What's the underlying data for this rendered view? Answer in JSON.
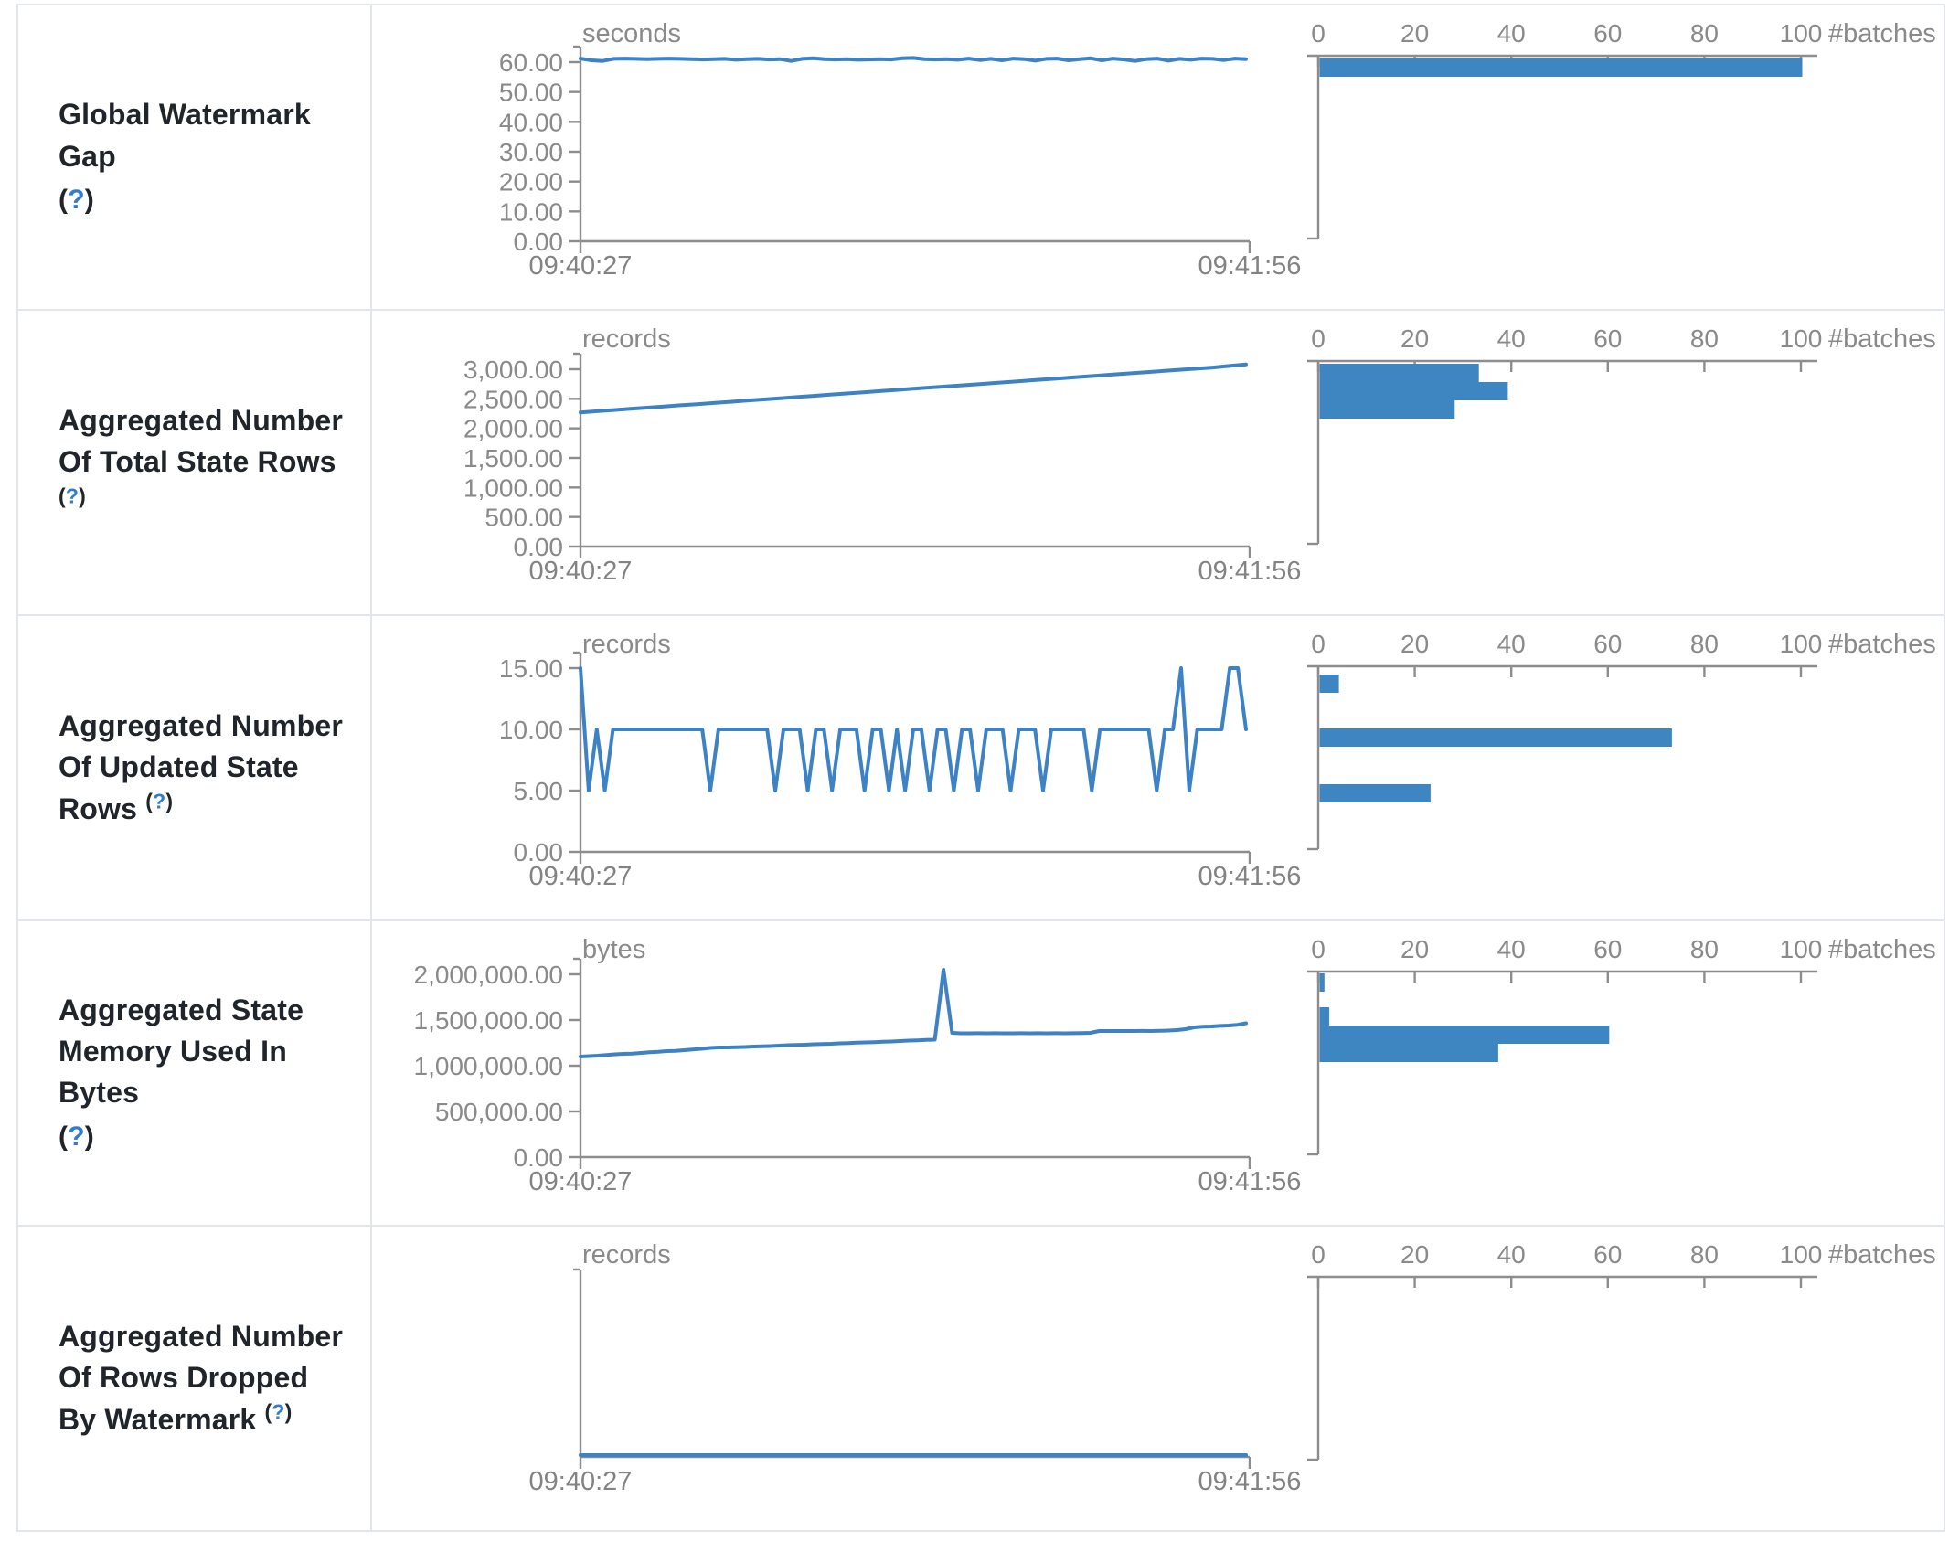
{
  "colors": {
    "series_blue": "#3c82c4",
    "histogram_blue": "#3e86c2",
    "axis_gray": "#8d8d8d",
    "tick_text_gray": "#8a8a8a",
    "label_dark": "#20252b",
    "help_blue": "#2e7dd1",
    "table_border": "#e2e5e9"
  },
  "time_axis": {
    "start": "09:40:27",
    "end": "09:41:56"
  },
  "batches_axis": {
    "ticks": [
      "0",
      "20",
      "40",
      "60",
      "80",
      "100"
    ],
    "label": "#batches"
  },
  "rows": [
    {
      "label": "Global Watermark Gap",
      "help": {
        "open": "(",
        "q": "?",
        "close": ")"
      },
      "help_style": "blk"
    },
    {
      "label": "Aggregated Number Of Total State Rows",
      "help": {
        "open": "(",
        "q": "?",
        "close": ")"
      },
      "help_style": "sup"
    },
    {
      "label": "Aggregated Number Of Updated State Rows",
      "help": {
        "open": "(",
        "q": "?",
        "close": ")"
      },
      "help_style": "sup"
    },
    {
      "label": "Aggregated State Memory Used In Bytes",
      "help": {
        "open": "(",
        "q": "?",
        "close": ")"
      },
      "help_style": "blk"
    },
    {
      "label": "Aggregated Number Of Rows Dropped By Watermark",
      "help": {
        "open": "(",
        "q": "?",
        "close": ")"
      },
      "help_style": "sup"
    }
  ],
  "chart_data": [
    {
      "type": "line",
      "metric": "Global Watermark Gap",
      "unit": "seconds",
      "x_start": "09:40:27",
      "x_end": "09:41:56",
      "yticks": [
        "60.00",
        "50.00",
        "40.00",
        "30.00",
        "20.00",
        "10.00",
        "0.00"
      ],
      "ymax_tick": 60,
      "values": [
        61.2,
        60.6,
        60.4,
        61.1,
        61.2,
        61.1,
        61.0,
        61.1,
        61.2,
        61.1,
        61.0,
        60.9,
        61.0,
        61.1,
        60.8,
        61.0,
        61.1,
        60.9,
        61.0,
        60.4,
        61.1,
        61.3,
        61.0,
        60.9,
        61.0,
        60.8,
        60.9,
        61.0,
        60.9,
        61.3,
        61.4,
        61.0,
        60.9,
        61.0,
        60.8,
        61.2,
        60.7,
        61.1,
        60.6,
        61.2,
        61.0,
        60.5,
        61.1,
        61.2,
        60.6,
        61.0,
        61.3,
        60.6,
        61.2,
        60.9,
        60.4,
        61.0,
        61.2,
        60.5,
        61.1,
        60.8,
        61.2,
        61.1,
        60.7,
        61.2,
        61.0
      ],
      "histogram_bars": [
        {
          "count": 100,
          "offset": 2
        }
      ]
    },
    {
      "type": "line",
      "metric": "Aggregated Number Of Total State Rows",
      "unit": "records",
      "x_start": "09:40:27",
      "x_end": "09:41:56",
      "yticks": [
        "3,000.00",
        "2,500.00",
        "2,000.00",
        "1,500.00",
        "1,000.00",
        "500.00",
        "0.00"
      ],
      "ymax_tick": 3000,
      "values": [
        2270,
        2290,
        2310,
        2330,
        2350,
        2370,
        2390,
        2410,
        2430,
        2450,
        2470,
        2490,
        2510,
        2530,
        2550,
        2570,
        2590,
        2610,
        2630,
        2650,
        2670,
        2690,
        2710,
        2730,
        2750,
        2770,
        2790,
        2810,
        2830,
        2850,
        2870,
        2890,
        2910,
        2930,
        2950,
        2970,
        2990,
        3010,
        3030,
        3055,
        3080
      ],
      "histogram_bars": [
        {
          "count": 33,
          "offset": 2
        },
        {
          "count": 39,
          "offset": 22
        },
        {
          "count": 28,
          "offset": 42
        }
      ]
    },
    {
      "type": "line",
      "metric": "Aggregated Number Of Updated State Rows",
      "unit": "records",
      "x_start": "09:40:27",
      "x_end": "09:41:56",
      "yticks": [
        "15.00",
        "10.00",
        "5.00",
        "0.00"
      ],
      "ymax_tick": 15,
      "values": [
        15,
        5,
        10,
        5,
        10,
        10,
        10,
        10,
        10,
        10,
        10,
        10,
        10,
        10,
        10,
        10,
        5,
        10,
        10,
        10,
        10,
        10,
        10,
        10,
        5,
        10,
        10,
        10,
        5,
        10,
        10,
        5,
        10,
        10,
        10,
        5,
        10,
        10,
        5,
        10,
        5,
        10,
        10,
        5,
        10,
        10,
        5,
        10,
        10,
        5,
        10,
        10,
        10,
        5,
        10,
        10,
        10,
        5,
        10,
        10,
        10,
        10,
        10,
        5,
        10,
        10,
        10,
        10,
        10,
        10,
        10,
        5,
        10,
        10,
        15,
        5,
        10,
        10,
        10,
        10,
        15,
        15,
        10
      ],
      "histogram_bars": [
        {
          "count": 4,
          "offset": 8
        },
        {
          "count": 73,
          "offset": 67
        },
        {
          "count": 23,
          "offset": 128
        }
      ]
    },
    {
      "type": "line",
      "metric": "Aggregated State Memory Used In Bytes",
      "unit": "bytes",
      "x_start": "09:40:27",
      "x_end": "09:41:56",
      "yticks": [
        "2,000,000.00",
        "1,500,000.00",
        "1,000,000.00",
        "500,000.00",
        "0.00"
      ],
      "ymax_tick": 2000000,
      "values": [
        1100000,
        1105000,
        1110000,
        1118000,
        1125000,
        1130000,
        1132000,
        1140000,
        1148000,
        1152000,
        1160000,
        1162000,
        1170000,
        1178000,
        1185000,
        1195000,
        1200000,
        1200000,
        1202000,
        1205000,
        1210000,
        1212000,
        1215000,
        1220000,
        1225000,
        1228000,
        1230000,
        1235000,
        1238000,
        1240000,
        1245000,
        1248000,
        1252000,
        1255000,
        1258000,
        1262000,
        1265000,
        1270000,
        1275000,
        1278000,
        1282000,
        1285000,
        2050000,
        1360000,
        1355000,
        1355000,
        1356000,
        1355000,
        1356000,
        1355000,
        1355000,
        1356000,
        1355000,
        1356000,
        1355000,
        1356000,
        1355000,
        1356000,
        1358000,
        1360000,
        1380000,
        1380000,
        1380000,
        1380000,
        1380000,
        1381000,
        1380000,
        1382000,
        1385000,
        1390000,
        1400000,
        1420000,
        1428000,
        1430000,
        1436000,
        1440000,
        1448000,
        1465000
      ],
      "histogram_bars": [
        {
          "count": 1,
          "offset": 1
        },
        {
          "count": 2,
          "offset": 38
        },
        {
          "count": 60,
          "offset": 58
        },
        {
          "count": 37,
          "offset": 78
        }
      ]
    },
    {
      "type": "line",
      "metric": "Aggregated Number Of Rows Dropped By Watermark",
      "unit": "records",
      "x_start": "09:40:27",
      "x_end": "09:41:56",
      "yticks": [],
      "ymax_tick": null,
      "values": [
        0,
        0
      ],
      "histogram_bars": []
    }
  ]
}
